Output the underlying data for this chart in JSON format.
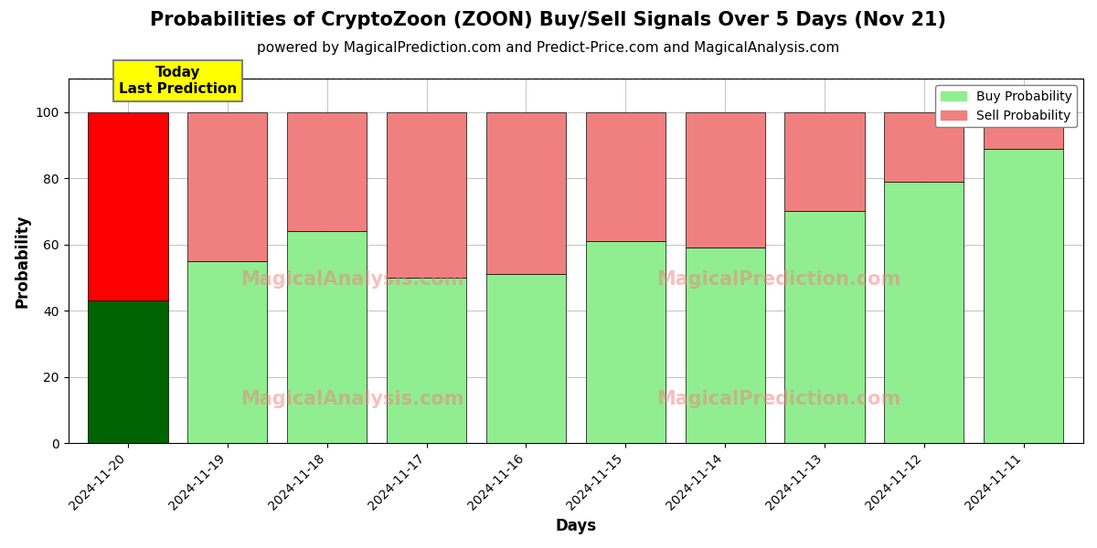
{
  "title": "Probabilities of CryptoZoon (ZOON) Buy/Sell Signals Over 5 Days (Nov 21)",
  "subtitle": "powered by MagicalPrediction.com and Predict-Price.com and MagicalAnalysis.com",
  "xlabel": "Days",
  "ylabel": "Probability",
  "categories": [
    "2024-11-20",
    "2024-11-19",
    "2024-11-18",
    "2024-11-17",
    "2024-11-16",
    "2024-11-15",
    "2024-11-14",
    "2024-11-13",
    "2024-11-12",
    "2024-11-11"
  ],
  "buy_values": [
    43,
    55,
    64,
    50,
    51,
    61,
    59,
    70,
    79,
    89
  ],
  "sell_values": [
    57,
    45,
    36,
    50,
    49,
    39,
    41,
    30,
    21,
    11
  ],
  "today_buy_color": "#006400",
  "today_sell_color": "#FF0000",
  "buy_color": "#90EE90",
  "sell_color": "#F08080",
  "ylim": [
    0,
    110
  ],
  "dashed_line_y": 110,
  "legend_buy_label": "Buy Probability",
  "legend_sell_label": "Sell Probability",
  "today_label_text": "Today\nLast Prediction",
  "today_box_color": "#FFFF00",
  "grid_color": "#aaaaaa",
  "title_fontsize": 15,
  "subtitle_fontsize": 11,
  "axis_label_fontsize": 12,
  "tick_fontsize": 10,
  "background_color": "#ffffff"
}
